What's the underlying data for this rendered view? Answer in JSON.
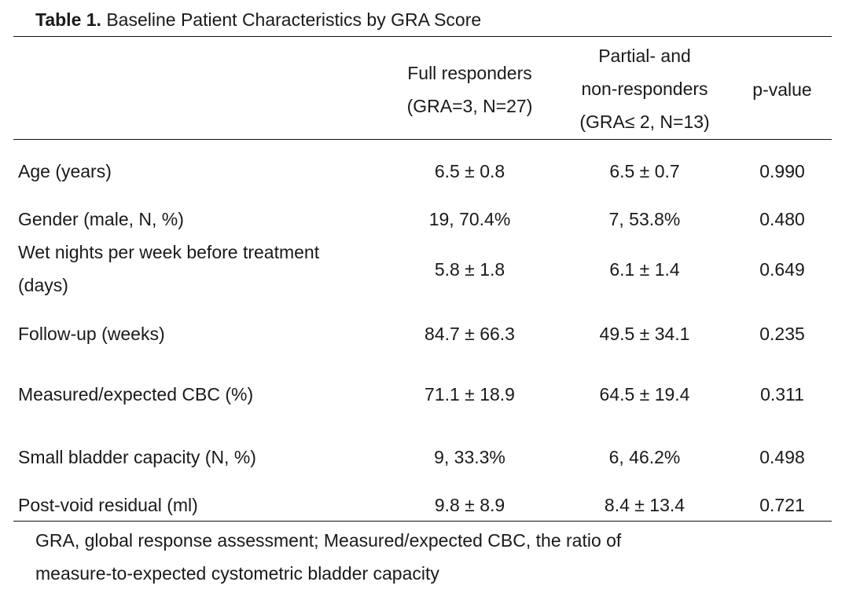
{
  "caption": {
    "label": "Table 1.",
    "text": "Baseline Patient Characteristics by GRA Score"
  },
  "header": {
    "col2": [
      "Full responders",
      "(GRA=3, N=27)"
    ],
    "col3": [
      "Partial- and",
      "non-responders",
      "(GRA≤ 2, N=13)"
    ],
    "col4": "p-value"
  },
  "rows": [
    {
      "label": [
        "Age (years)"
      ],
      "full": "6.5 ± 0.8",
      "partial": "6.5 ± 0.7",
      "p": "0.990"
    },
    {
      "label": [
        "Gender (male, N, %)"
      ],
      "full": "19, 70.4%",
      "partial": "7, 53.8%",
      "p": "0.480"
    },
    {
      "label": [
        "Wet nights per week before treatment",
        "(days)"
      ],
      "full": "5.8 ± 1.8",
      "partial": "6.1 ± 1.4",
      "p": "0.649"
    },
    {
      "label": [
        "Follow-up (weeks)"
      ],
      "full": "84.7 ± 66.3",
      "partial": "49.5 ± 34.1",
      "p": "0.235"
    },
    {
      "label": [
        "Measured/expected CBC (%)"
      ],
      "full": "71.1 ± 18.9",
      "partial": "64.5 ± 19.4",
      "p": "0.311"
    },
    {
      "label": [
        "Small bladder capacity (N, %)"
      ],
      "full": "9, 33.3%",
      "partial": "6, 46.2%",
      "p": "0.498"
    },
    {
      "label": [
        "Post-void residual (ml)"
      ],
      "full": "9.8 ± 8.9",
      "partial": "8.4 ± 13.4",
      "p": "0.721"
    }
  ],
  "footnote": [
    "GRA, global response assessment; Measured/expected CBC, the ratio of",
    "measure-to-expected cystometric bladder capacity"
  ]
}
